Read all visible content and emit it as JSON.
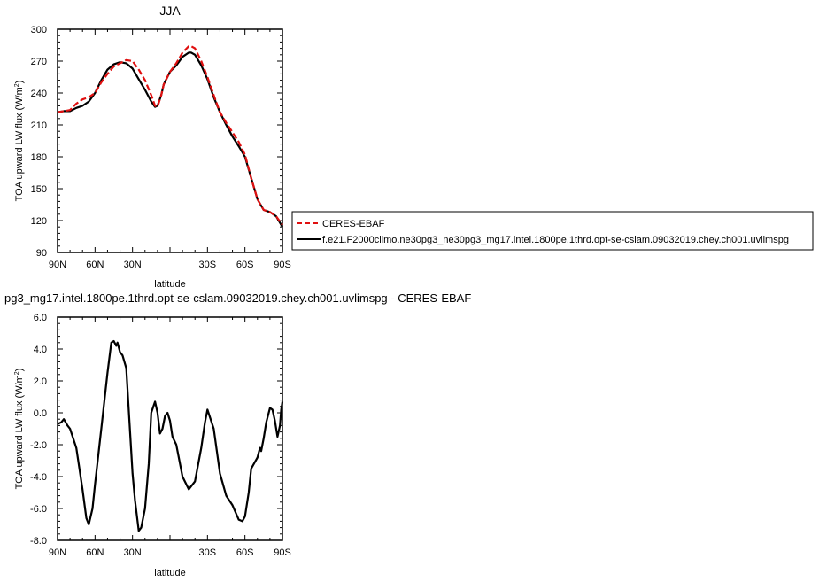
{
  "chart_data": [
    {
      "type": "line",
      "title": "JJA",
      "xlabel": "latitude",
      "ylabel": "TOA upward LW flux (W/m",
      "ylabel_sup": "2",
      "ylabel_close": ")",
      "xlim": [
        90,
        -90
      ],
      "ylim": [
        90,
        300
      ],
      "x_ticks": [
        90,
        60,
        30,
        0,
        -30,
        -60,
        -90
      ],
      "x_tick_labels": [
        "90N",
        "60N",
        "30N",
        "",
        "30S",
        "60S",
        "90S"
      ],
      "y_ticks": [
        90,
        120,
        150,
        180,
        210,
        240,
        270,
        300
      ],
      "y_tick_labels": [
        "90",
        "120",
        "150",
        "180",
        "210",
        "240",
        "270",
        "300"
      ],
      "legend": "outside-right",
      "series": [
        {
          "name": "CERES-EBAF",
          "color": "#e01010",
          "dash": "dashed",
          "x": [
            90,
            85,
            80,
            75,
            70,
            65,
            60,
            55,
            50,
            45,
            40,
            35,
            30,
            25,
            20,
            15,
            12,
            10,
            7,
            5,
            0,
            -5,
            -10,
            -15,
            -17,
            -20,
            -25,
            -30,
            -35,
            -40,
            -45,
            -50,
            -55,
            -60,
            -65,
            -70,
            -75,
            -80,
            -85,
            -90
          ],
          "y": [
            222,
            223,
            224,
            230,
            234,
            236,
            240,
            250,
            258,
            265,
            268,
            271,
            270,
            262,
            252,
            238,
            228,
            227,
            238,
            248,
            260,
            268,
            278,
            284,
            284,
            282,
            270,
            255,
            238,
            222,
            212,
            203,
            194,
            182,
            160,
            140,
            130,
            128,
            124,
            116
          ]
        },
        {
          "name": "f.e21.F2000climo.ne30pg3_ne30pg3_mg17.intel.1800pe.1thrd.opt-se-cslam.09032019.chey.ch001.uvlimspg",
          "color": "#000000",
          "dash": "solid",
          "x": [
            90,
            85,
            80,
            75,
            70,
            65,
            60,
            55,
            50,
            45,
            40,
            35,
            30,
            25,
            20,
            15,
            12,
            10,
            7,
            5,
            0,
            -5,
            -10,
            -15,
            -17,
            -20,
            -25,
            -30,
            -35,
            -40,
            -45,
            -50,
            -55,
            -60,
            -65,
            -70,
            -75,
            -80,
            -85,
            -90
          ],
          "y": [
            222,
            223,
            223,
            226,
            228,
            232,
            240,
            252,
            262,
            267,
            269,
            268,
            263,
            253,
            243,
            232,
            227,
            228,
            238,
            248,
            260,
            266,
            274,
            278,
            278,
            276,
            266,
            253,
            236,
            222,
            210,
            199,
            190,
            180,
            160,
            140,
            130,
            128,
            124,
            114
          ]
        }
      ]
    },
    {
      "type": "line",
      "title": "pg3_mg17.intel.1800pe.1thrd.opt-se-cslam.09032019.chey.ch001.uvlimspg - CERES-EBAF",
      "xlabel": "latitude",
      "ylabel": "TOA upward LW flux (W/m",
      "ylabel_sup": "2",
      "ylabel_close": ")",
      "xlim": [
        90,
        -90
      ],
      "ylim": [
        -8,
        6
      ],
      "x_ticks": [
        90,
        60,
        30,
        0,
        -30,
        -60,
        -90
      ],
      "x_tick_labels": [
        "90N",
        "60N",
        "30N",
        "",
        "30S",
        "60S",
        "90S"
      ],
      "y_ticks": [
        -8,
        -6,
        -4,
        -2,
        0,
        2,
        4,
        6
      ],
      "y_tick_labels": [
        "-8.0",
        "-6.0",
        "-4.0",
        "-2.0",
        "0.0",
        "2.0",
        "4.0",
        "6.0"
      ],
      "series": [
        {
          "color": "#000000",
          "dash": "solid",
          "x": [
            90,
            87,
            85,
            82,
            80,
            75,
            70,
            67,
            65,
            62,
            60,
            55,
            50,
            47,
            45,
            43,
            42,
            40,
            38,
            35,
            30,
            28,
            25,
            23,
            20,
            17,
            15,
            12,
            10,
            8,
            6,
            4,
            2,
            0,
            -2,
            -5,
            -10,
            -15,
            -20,
            -25,
            -28,
            -30,
            -35,
            -40,
            -45,
            -50,
            -55,
            -58,
            -60,
            -63,
            -65,
            -70,
            -72,
            -73,
            -75,
            -77,
            -80,
            -82,
            -84,
            -86,
            -88,
            -89,
            -90
          ],
          "y": [
            -0.7,
            -0.6,
            -0.4,
            -0.8,
            -1.0,
            -2.2,
            -4.8,
            -6.6,
            -7.0,
            -6.0,
            -4.5,
            -1.0,
            2.5,
            4.4,
            4.5,
            4.2,
            4.4,
            3.8,
            3.6,
            2.8,
            -3.8,
            -5.5,
            -7.4,
            -7.2,
            -6.0,
            -3.2,
            0.0,
            0.7,
            0.0,
            -1.3,
            -1.0,
            -0.2,
            0.0,
            -0.5,
            -1.5,
            -2.0,
            -4.0,
            -4.8,
            -4.3,
            -2.2,
            -0.6,
            0.2,
            -1.0,
            -3.8,
            -5.2,
            -5.8,
            -6.7,
            -6.8,
            -6.5,
            -5.0,
            -3.5,
            -2.8,
            -2.2,
            -2.4,
            -1.6,
            -0.6,
            0.3,
            0.2,
            -0.5,
            -1.5,
            -0.8,
            0.2,
            0.7
          ]
        }
      ]
    }
  ]
}
